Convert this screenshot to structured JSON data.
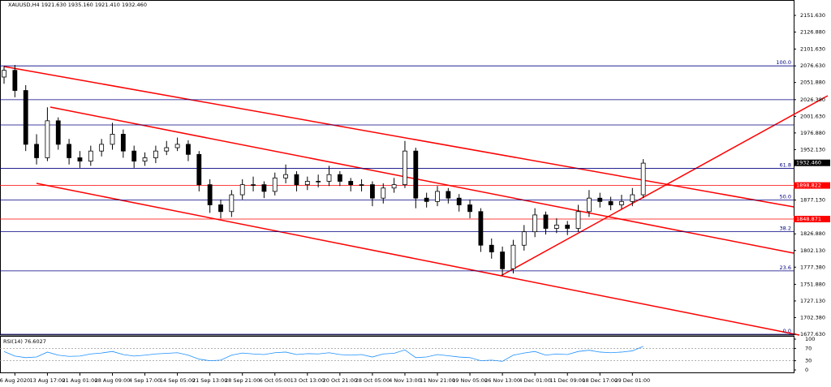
{
  "chart_data": {
    "type": "candlestick",
    "title": "XAUUSD,H4  1921.630 1935.160 1921.410 1932.460",
    "categories": [
      null,
      "6 Aug 2020",
      null,
      null,
      "13 Aug 17:00",
      null,
      null,
      "21 Aug 01:00",
      null,
      null,
      "28 Aug 09:00",
      null,
      null,
      "4 Sep 17:00",
      null,
      null,
      "14 Sep 05:00",
      null,
      null,
      "21 Sep 13:00",
      null,
      null,
      "28 Sep 21:00",
      null,
      null,
      "6 Oct 05:00",
      null,
      null,
      "13 Oct 13:00",
      null,
      null,
      "20 Oct 21:00",
      null,
      null,
      "28 Oct 05:00",
      null,
      null,
      "4 Nov 13:00",
      null,
      null,
      "11 Nov 21:00",
      null,
      null,
      "19 Nov 05:00",
      null,
      null,
      "26 Nov 13:00",
      null,
      null,
      "4 Dec 01:00",
      null,
      null,
      "11 Dec 09:00",
      null,
      null,
      "18 Dec 17:00",
      null,
      null,
      "29 Dec 01:00",
      null
    ],
    "open": [
      2060,
      2070,
      2040,
      1960,
      1940,
      1995,
      1960,
      1940,
      1935,
      1950,
      1960,
      1975,
      1950,
      1935,
      1940,
      1950,
      1955,
      1960,
      1945,
      1900,
      1870,
      1860,
      1885,
      1900,
      1900,
      1890,
      1910,
      1915,
      1900,
      1905,
      1905,
      1915,
      1905,
      1900,
      1900,
      1880,
      1895,
      1900,
      1950,
      1880,
      1875,
      1890,
      1880,
      1870,
      1860,
      1810,
      1800,
      1775,
      1810,
      1830,
      1855,
      1835,
      1840,
      1835,
      1860,
      1880,
      1875,
      1870,
      1875,
      1885
    ],
    "high": [
      2076,
      2078,
      2048,
      1975,
      2015,
      2000,
      1968,
      1950,
      1958,
      1968,
      1992,
      1982,
      1958,
      1948,
      1958,
      1965,
      1970,
      1966,
      1950,
      1908,
      1878,
      1892,
      1908,
      1912,
      1905,
      1918,
      1930,
      1920,
      1912,
      1915,
      1928,
      1920,
      1910,
      1908,
      1905,
      1902,
      1910,
      1965,
      1955,
      1888,
      1898,
      1895,
      1886,
      1878,
      1865,
      1820,
      1808,
      1818,
      1840,
      1865,
      1860,
      1850,
      1846,
      1870,
      1892,
      1888,
      1882,
      1885,
      1895,
      1938
    ],
    "low": [
      2050,
      2030,
      1950,
      1930,
      1935,
      1952,
      1930,
      1925,
      1928,
      1942,
      1952,
      1940,
      1925,
      1928,
      1932,
      1944,
      1950,
      1935,
      1890,
      1858,
      1850,
      1852,
      1878,
      1890,
      1880,
      1884,
      1902,
      1890,
      1892,
      1896,
      1898,
      1898,
      1890,
      1890,
      1868,
      1872,
      1888,
      1895,
      1865,
      1866,
      1868,
      1872,
      1860,
      1850,
      1800,
      1790,
      1765,
      1768,
      1802,
      1822,
      1826,
      1828,
      1825,
      1830,
      1852,
      1866,
      1862,
      1864,
      1868,
      1880
    ],
    "close": [
      2070,
      2040,
      1960,
      1940,
      1995,
      1960,
      1940,
      1935,
      1950,
      1960,
      1975,
      1950,
      1935,
      1940,
      1950,
      1955,
      1960,
      1945,
      1900,
      1870,
      1860,
      1885,
      1900,
      1900,
      1890,
      1910,
      1915,
      1900,
      1905,
      1905,
      1915,
      1905,
      1900,
      1900,
      1880,
      1895,
      1900,
      1950,
      1880,
      1875,
      1890,
      1880,
      1870,
      1860,
      1810,
      1800,
      1775,
      1810,
      1830,
      1855,
      1835,
      1840,
      1835,
      1860,
      1880,
      1875,
      1870,
      1875,
      1885,
      1932
    ],
    "color": "#000000",
    "ylim": [
      1676.4,
      2164.9
    ],
    "yticks": [
      {
        "value": 2151.63,
        "label": "2151.630"
      },
      {
        "value": 2126.88,
        "label": "2126.880"
      },
      {
        "value": 2101.63,
        "label": "2101.630"
      },
      {
        "value": 2076.63,
        "label": "2076.630"
      },
      {
        "value": 2051.88,
        "label": "2051.880"
      },
      {
        "value": 2026.38,
        "label": "2026.380"
      },
      {
        "value": 2001.63,
        "label": "2001.630"
      },
      {
        "value": 1976.88,
        "label": "1976.880"
      },
      {
        "value": 1952.13,
        "label": "1952.130"
      },
      {
        "value": 1877.13,
        "label": "1877.130"
      },
      {
        "value": 1826.88,
        "label": "1826.880"
      },
      {
        "value": 1802.13,
        "label": "1802.130"
      },
      {
        "value": 1777.38,
        "label": "1777.380"
      },
      {
        "value": 1751.88,
        "label": "1751.880"
      },
      {
        "value": 1727.13,
        "label": "1727.130"
      },
      {
        "value": 1702.38,
        "label": "1702.380"
      },
      {
        "value": 1677.63,
        "label": "1677.630"
      }
    ],
    "hlines": [
      {
        "value": 2026.38,
        "color": "#000080"
      },
      {
        "value": 1988.8,
        "color": "#000080"
      }
    ],
    "fib": [
      {
        "value": 2076.63,
        "label": "100.0"
      },
      {
        "value": 1924.2,
        "label": "61.8"
      },
      {
        "value": 1877.1,
        "label": "50.0"
      },
      {
        "value": 1830.0,
        "label": "38.2"
      },
      {
        "value": 1771.8,
        "label": "23.6"
      },
      {
        "value": 1677.63,
        "label": "0.0"
      }
    ],
    "fib_color": "#000080",
    "price_tags": [
      {
        "value": 1932.46,
        "label": "1932.460",
        "color": "#000000"
      },
      {
        "value": 1898.822,
        "label": "1898.822",
        "color": "#ff0000"
      },
      {
        "value": 1848.871,
        "label": "1848.871",
        "color": "#ff0000"
      }
    ],
    "rsi": {
      "label": "RSI(14) 76.6027",
      "color": "#1e90ff",
      "ylim": [
        0,
        100
      ],
      "yticks": [
        100,
        70,
        30,
        0
      ],
      "levels": [
        70,
        30
      ],
      "values": [
        60,
        45,
        40,
        42,
        58,
        48,
        44,
        45,
        52,
        55,
        60,
        50,
        45,
        48,
        52,
        54,
        56,
        48,
        35,
        30,
        32,
        48,
        55,
        52,
        50,
        56,
        58,
        50,
        53,
        52,
        56,
        50,
        48,
        50,
        42,
        52,
        54,
        65,
        40,
        42,
        50,
        46,
        42,
        40,
        30,
        32,
        28,
        48,
        55,
        60,
        48,
        52,
        50,
        60,
        64,
        58,
        56,
        58,
        62,
        76.6027
      ]
    }
  }
}
